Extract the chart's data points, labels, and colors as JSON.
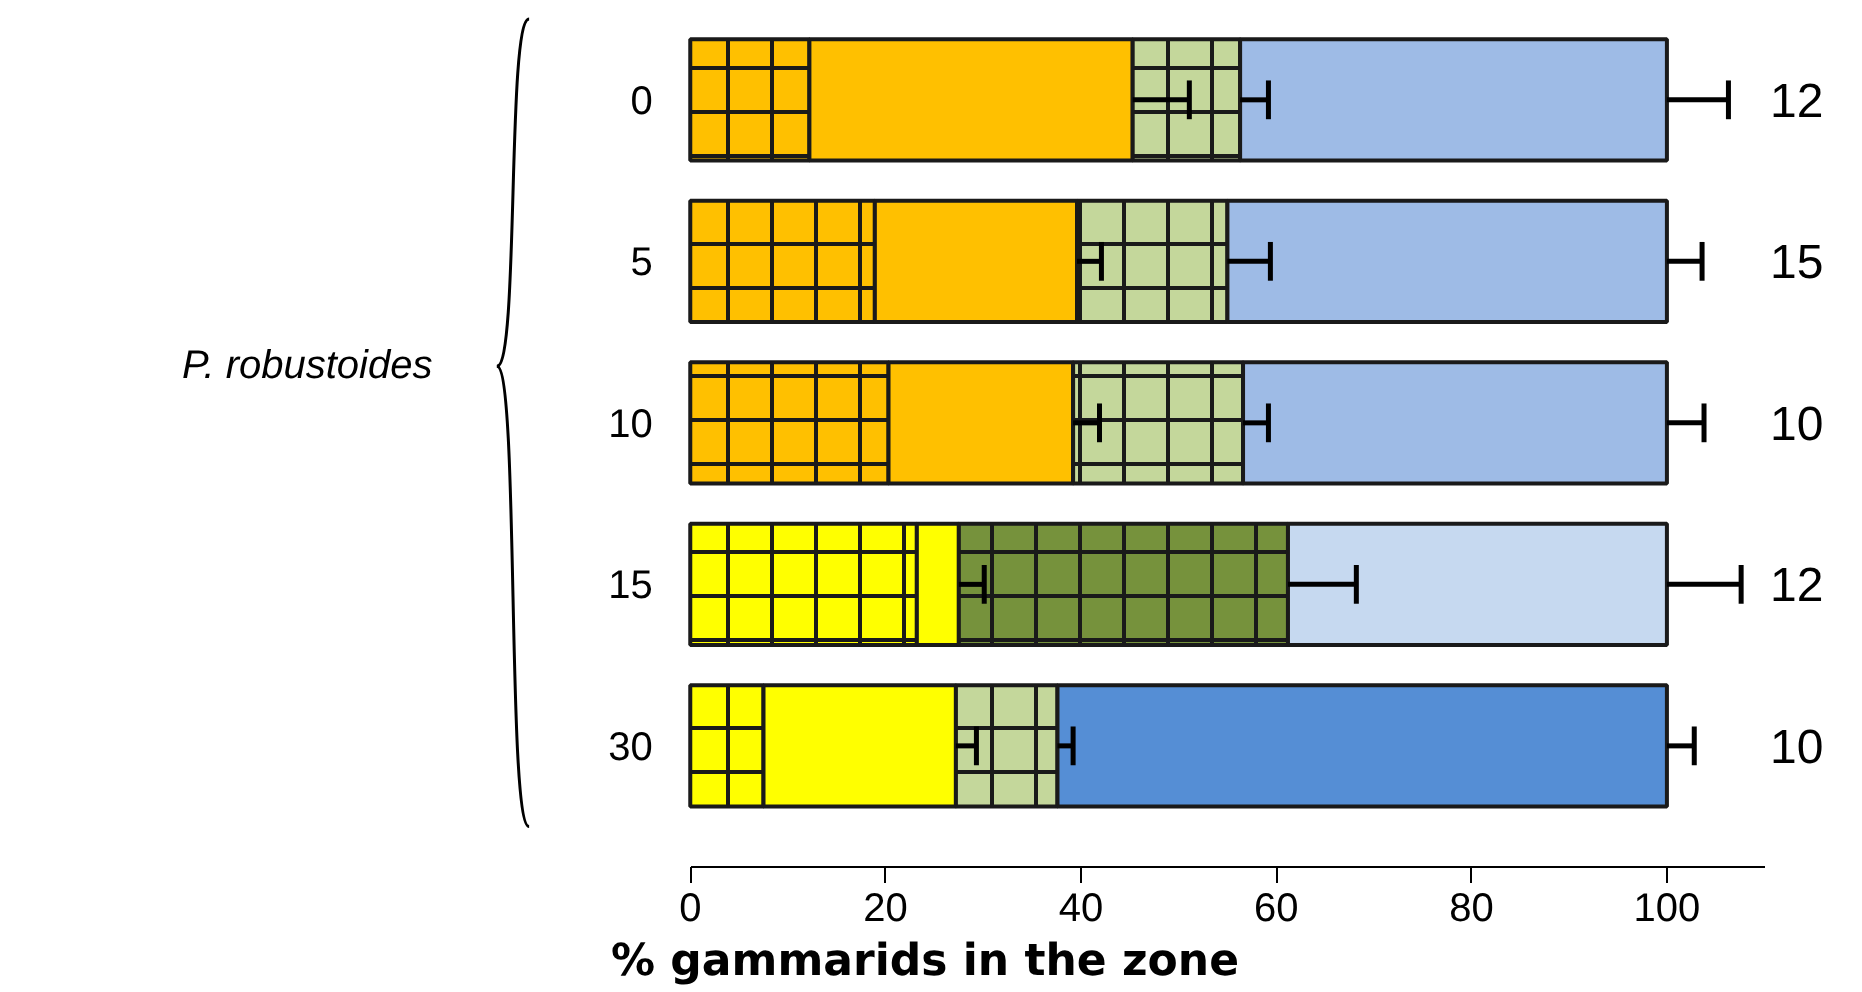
{
  "chart_data": {
    "type": "bar",
    "orientation": "horizontal",
    "stacked": true,
    "xlabel": "% gammarids in the zone",
    "categories": [
      "0",
      "5",
      "10",
      "15",
      "30"
    ],
    "series": [
      {
        "colors": [
          "#ffc000",
          "#ffc000",
          "#ffc000",
          "#ffff00",
          "#ffff00"
        ],
        "values": [
          12.2,
          18.9,
          20.3,
          23.2,
          7.5
        ]
      },
      {
        "colors": [
          "#ffc000",
          "#ffc000",
          "#ffc000",
          "#ffff00",
          "#ffff00"
        ],
        "values": [
          33.1,
          20.7,
          18.9,
          4.3,
          19.7
        ],
        "errors": [
          [
            45.3,
            51.1
          ],
          [
            39.6,
            42.1
          ],
          [
            39.2,
            41.9
          ],
          [
            27.5,
            30.1
          ],
          [
            27.2,
            29.3
          ]
        ]
      },
      {
        "colors": [
          "#c4d79b",
          "#c4d79b",
          "#c4d79b",
          "#76923c",
          "#c4d79b"
        ],
        "values": [
          11.0,
          15.4,
          17.4,
          33.7,
          10.4
        ],
        "errors": [
          [
            56.3,
            59.2
          ],
          [
            55.0,
            59.4
          ],
          [
            56.6,
            59.2
          ],
          [
            61.2,
            68.2
          ],
          [
            37.6,
            39.2
          ]
        ]
      },
      {
        "colors": [
          "#9ebbe6",
          "#9ebbe6",
          "#9ebbe6",
          "#c6d9f0",
          "#558ed5"
        ],
        "values": [
          43.7,
          45.0,
          43.4,
          38.8,
          62.4
        ],
        "errors": [
          [
            100,
            106.3
          ],
          [
            100,
            103.6
          ],
          [
            100,
            103.8
          ],
          [
            100,
            107.6
          ],
          [
            100,
            102.8
          ]
        ]
      }
    ],
    "xlim": [
      0,
      110
    ],
    "xticks": [
      0,
      20,
      40,
      60,
      80,
      100
    ],
    "annotations": [
      "P. robustoides",
      "12",
      "15",
      "10",
      "12",
      "10"
    ],
    "grid": false
  }
}
